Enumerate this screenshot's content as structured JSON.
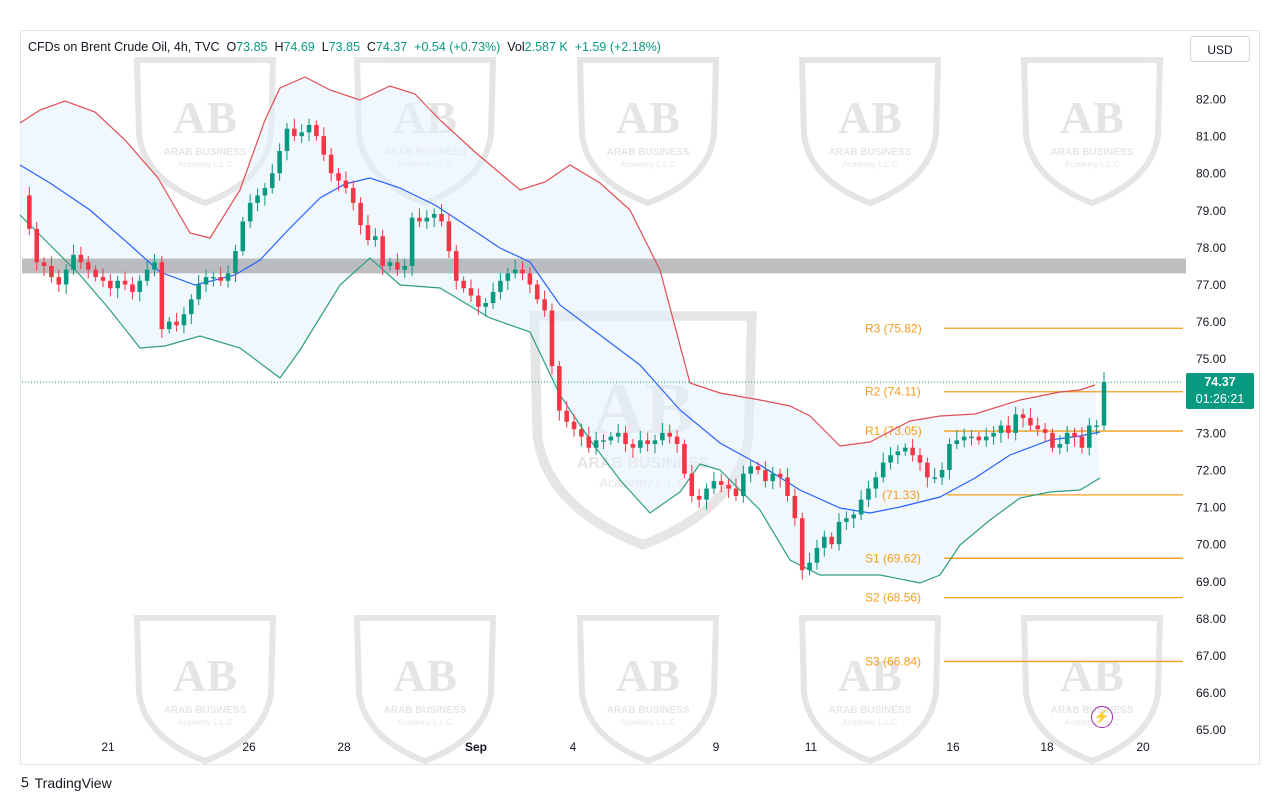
{
  "legend": {
    "symbol": "CFDs on Brent Crude Oil, 4h, TVC",
    "o_label": "O",
    "o_value": "73.85",
    "h_label": "H",
    "h_value": "74.69",
    "l_label": "L",
    "l_value": "73.85",
    "c_label": "C",
    "c_value": "74.37",
    "change": "+0.54 (+0.73%)",
    "vol_label": "Vol",
    "vol_value": "2.587 K",
    "vol_change": "+1.59 (+2.18%)"
  },
  "currency_button": "USD",
  "last_price": "74.37",
  "countdown": "01:26:21",
  "branding": {
    "logo": "TradingView",
    "watermark": "ARAB BUSINESS",
    "watermark_sub": "Academy L.L.C"
  },
  "colors": {
    "up": "#089981",
    "down": "#f23645",
    "band_upper": "#e04f55",
    "band_mid": "#2962ff",
    "band_lower": "#2e9e7e",
    "levels": "#f59d1c",
    "zone": "#a8a8ac"
  },
  "chart_data": {
    "type": "candlestick",
    "title": "CFDs on Brent Crude Oil, 4h, TVC",
    "x_ticks": [
      "21",
      "26",
      "28",
      "Sep",
      "4",
      "9",
      "11",
      "16",
      "18",
      "20"
    ],
    "y_ticks": [
      "82.00",
      "81.00",
      "80.00",
      "79.00",
      "78.00",
      "77.00",
      "76.00",
      "75.00",
      "73.00",
      "72.00",
      "71.00",
      "70.00",
      "69.00",
      "68.00",
      "67.00",
      "66.00",
      "65.00"
    ],
    "ylim": [
      64.95,
      82.65
    ],
    "grid": false,
    "resistance_zone": [
      77.3,
      77.7
    ],
    "pivot_levels": [
      {
        "label": "R3 (75.82)",
        "value": 75.82
      },
      {
        "label": "R2 (74.11)",
        "value": 74.11
      },
      {
        "label": "R1 (73.05)",
        "value": 73.05
      },
      {
        "label": "(71.33)",
        "value": 71.33
      },
      {
        "label": "S1 (69.62)",
        "value": 69.62
      },
      {
        "label": "S2 (68.56)",
        "value": 68.56
      },
      {
        "label": "S3 (66.84)",
        "value": 66.84
      }
    ],
    "close_path": [
      79.4,
      78.5,
      77.6,
      77.5,
      77.2,
      77.0,
      77.4,
      77.8,
      77.6,
      77.4,
      77.2,
      77.1,
      76.9,
      77.1,
      77.0,
      76.8,
      77.1,
      77.4,
      77.6,
      75.8,
      76.0,
      75.9,
      76.2,
      76.6,
      77.0,
      77.2,
      77.2,
      77.1,
      77.3,
      77.9,
      78.7,
      79.2,
      79.4,
      79.6,
      80.0,
      80.6,
      81.2,
      81.0,
      81.1,
      81.3,
      81.0,
      80.5,
      80.0,
      79.8,
      79.6,
      79.2,
      78.6,
      78.2,
      78.3,
      77.5,
      77.6,
      77.4,
      77.5,
      78.8,
      78.7,
      78.8,
      78.9,
      78.7,
      77.9,
      77.1,
      76.9,
      76.7,
      76.4,
      76.5,
      76.8,
      77.1,
      77.3,
      77.4,
      77.3,
      77.0,
      76.6,
      76.3,
      74.8,
      73.6,
      73.3,
      73.1,
      72.9,
      72.6,
      72.8,
      72.8,
      72.9,
      73.0,
      72.7,
      72.6,
      72.8,
      72.7,
      72.8,
      73.0,
      72.9,
      72.7,
      71.9,
      71.3,
      71.2,
      71.5,
      71.7,
      71.6,
      71.5,
      71.3,
      71.9,
      72.1,
      72.0,
      71.7,
      71.9,
      71.8,
      71.3,
      70.7,
      69.3,
      69.5,
      69.9,
      70.2,
      70.0,
      70.6,
      70.7,
      70.8,
      71.2,
      71.5,
      71.8,
      72.2,
      72.4,
      72.5,
      72.6,
      72.4,
      72.2,
      71.8,
      71.8,
      72.0,
      72.7,
      72.8,
      72.9,
      72.9,
      72.8,
      72.9,
      73.0,
      73.2,
      73.0,
      73.5,
      73.4,
      73.2,
      73.1,
      73.0,
      72.6,
      72.7,
      73.0,
      72.9,
      72.6,
      73.2,
      73.2,
      74.37
    ],
    "bollinger": {
      "upper": [
        [
          20,
          123
        ],
        [
          40,
          110
        ],
        [
          65,
          101
        ],
        [
          95,
          112
        ],
        [
          125,
          140
        ],
        [
          158,
          178
        ],
        [
          190,
          233
        ],
        [
          210,
          238
        ],
        [
          240,
          190
        ],
        [
          265,
          120
        ],
        [
          280,
          88
        ],
        [
          305,
          77
        ],
        [
          330,
          90
        ],
        [
          360,
          100
        ],
        [
          390,
          86
        ],
        [
          415,
          94
        ],
        [
          440,
          120
        ],
        [
          475,
          152
        ],
        [
          520,
          190
        ],
        [
          545,
          182
        ],
        [
          570,
          165
        ],
        [
          600,
          183
        ],
        [
          630,
          210
        ],
        [
          660,
          270
        ],
        [
          690,
          383
        ],
        [
          720,
          393
        ],
        [
          760,
          400
        ],
        [
          790,
          406
        ],
        [
          810,
          416
        ],
        [
          840,
          446
        ],
        [
          870,
          442
        ],
        [
          910,
          421
        ],
        [
          940,
          416
        ],
        [
          975,
          414
        ],
        [
          1020,
          400
        ],
        [
          1060,
          392
        ],
        [
          1080,
          390
        ],
        [
          1095,
          385
        ]
      ],
      "middle": [
        [
          20,
          165
        ],
        [
          50,
          183
        ],
        [
          90,
          210
        ],
        [
          130,
          245
        ],
        [
          160,
          272
        ],
        [
          195,
          285
        ],
        [
          235,
          275
        ],
        [
          260,
          260
        ],
        [
          290,
          228
        ],
        [
          320,
          198
        ],
        [
          345,
          184
        ],
        [
          370,
          178
        ],
        [
          400,
          188
        ],
        [
          435,
          205
        ],
        [
          470,
          228
        ],
        [
          500,
          248
        ],
        [
          530,
          262
        ],
        [
          560,
          305
        ],
        [
          600,
          335
        ],
        [
          640,
          365
        ],
        [
          680,
          410
        ],
        [
          720,
          443
        ],
        [
          760,
          465
        ],
        [
          800,
          490
        ],
        [
          840,
          508
        ],
        [
          870,
          513
        ],
        [
          900,
          507
        ],
        [
          940,
          497
        ],
        [
          975,
          478
        ],
        [
          1010,
          455
        ],
        [
          1050,
          440
        ],
        [
          1080,
          436
        ],
        [
          1100,
          432
        ]
      ],
      "lower": [
        [
          20,
          215
        ],
        [
          50,
          245
        ],
        [
          80,
          275
        ],
        [
          110,
          310
        ],
        [
          140,
          348
        ],
        [
          165,
          346
        ],
        [
          200,
          336
        ],
        [
          240,
          348
        ],
        [
          280,
          378
        ],
        [
          300,
          350
        ],
        [
          340,
          285
        ],
        [
          370,
          258
        ],
        [
          400,
          285
        ],
        [
          440,
          288
        ],
        [
          490,
          318
        ],
        [
          530,
          332
        ],
        [
          560,
          395
        ],
        [
          590,
          440
        ],
        [
          620,
          480
        ],
        [
          650,
          513
        ],
        [
          680,
          492
        ],
        [
          700,
          464
        ],
        [
          720,
          470
        ],
        [
          760,
          510
        ],
        [
          790,
          560
        ],
        [
          820,
          575
        ],
        [
          850,
          575
        ],
        [
          880,
          575
        ],
        [
          920,
          583
        ],
        [
          940,
          575
        ],
        [
          960,
          545
        ],
        [
          990,
          520
        ],
        [
          1020,
          498
        ],
        [
          1050,
          492
        ],
        [
          1080,
          490
        ],
        [
          1100,
          478
        ]
      ]
    }
  }
}
